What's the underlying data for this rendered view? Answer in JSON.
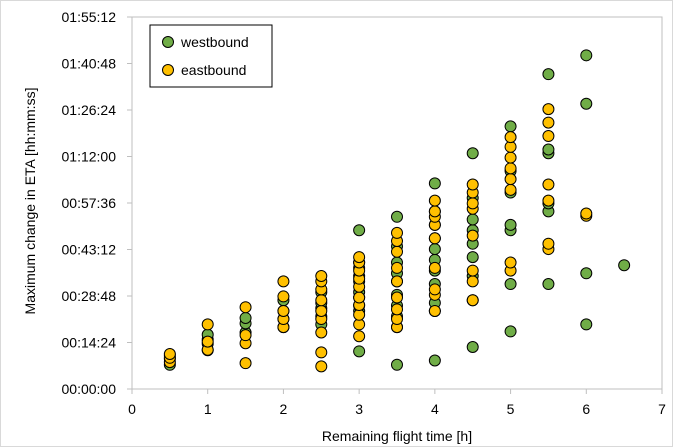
{
  "chart_data": {
    "type": "scatter",
    "xlabel": "Remaining flight time [h]",
    "ylabel": "Maximum change in ETA [hh:mm:ss]",
    "xlim": [
      0,
      7
    ],
    "ylim": [
      0,
      6912
    ],
    "x_ticks": [
      "0",
      "1",
      "2",
      "3",
      "4",
      "5",
      "6",
      "7"
    ],
    "y_tick_values": [
      0,
      864,
      1728,
      2592,
      3456,
      4320,
      5184,
      6048,
      6912
    ],
    "y_ticks": [
      "00:00:00",
      "00:14:24",
      "00:28:48",
      "00:43:12",
      "00:57:36",
      "01:12:00",
      "01:26:24",
      "01:40:48",
      "01:55:12"
    ],
    "grid": false,
    "legend_position": "top-left",
    "series": [
      {
        "name": "westbound",
        "color": "#70AD47",
        "points": [
          [
            0.5,
            450
          ],
          [
            0.5,
            560
          ],
          [
            0.5,
            620
          ],
          [
            1,
            720
          ],
          [
            1,
            840
          ],
          [
            1,
            920
          ],
          [
            1,
            1010
          ],
          [
            1.5,
            1050
          ],
          [
            1.5,
            1220
          ],
          [
            1.5,
            1320
          ],
          [
            2,
            1150
          ],
          [
            2,
            1300
          ],
          [
            2,
            1450
          ],
          [
            2,
            1650
          ],
          [
            2.5,
            1200
          ],
          [
            2.5,
            1350
          ],
          [
            2.5,
            1500
          ],
          [
            2.5,
            1600
          ],
          [
            2.5,
            1800
          ],
          [
            3,
            700
          ],
          [
            3,
            1450
          ],
          [
            3,
            1550
          ],
          [
            3,
            1700
          ],
          [
            3,
            1800
          ],
          [
            3,
            2000
          ],
          [
            3,
            2100
          ],
          [
            3,
            2250
          ],
          [
            3,
            2350
          ],
          [
            3,
            2950
          ],
          [
            3.5,
            450
          ],
          [
            3.5,
            1150
          ],
          [
            3.5,
            1350
          ],
          [
            3.5,
            1550
          ],
          [
            3.5,
            1750
          ],
          [
            3.5,
            2000
          ],
          [
            3.5,
            2150
          ],
          [
            3.5,
            2350
          ],
          [
            3.5,
            2650
          ],
          [
            3.5,
            3200
          ],
          [
            4,
            530
          ],
          [
            4,
            1450
          ],
          [
            4,
            1600
          ],
          [
            4,
            1950
          ],
          [
            4,
            2200
          ],
          [
            4,
            2400
          ],
          [
            4,
            2600
          ],
          [
            4,
            2800
          ],
          [
            4,
            3050
          ],
          [
            4,
            3300
          ],
          [
            4,
            3820
          ],
          [
            4.5,
            780
          ],
          [
            4.5,
            1650
          ],
          [
            4.5,
            2100
          ],
          [
            4.5,
            2450
          ],
          [
            4.5,
            2700
          ],
          [
            4.5,
            2950
          ],
          [
            4.5,
            3150
          ],
          [
            4.5,
            3550
          ],
          [
            4.5,
            4380
          ],
          [
            5,
            1070
          ],
          [
            5,
            1950
          ],
          [
            5,
            2950
          ],
          [
            5,
            3050
          ],
          [
            5,
            3650
          ],
          [
            5,
            4050
          ],
          [
            5,
            4880
          ],
          [
            5.5,
            1950
          ],
          [
            5.5,
            3300
          ],
          [
            5.5,
            3450
          ],
          [
            5.5,
            4380
          ],
          [
            5.5,
            4450
          ],
          [
            5.5,
            5850
          ],
          [
            6,
            1200
          ],
          [
            6,
            2150
          ],
          [
            6,
            5300
          ],
          [
            6,
            6200
          ],
          [
            6.5,
            2300
          ]
        ]
      },
      {
        "name": "eastbound",
        "color": "#FFC000",
        "points": [
          [
            0.5,
            500
          ],
          [
            0.5,
            580
          ],
          [
            0.5,
            650
          ],
          [
            1,
            730
          ],
          [
            1,
            880
          ],
          [
            1,
            1200
          ],
          [
            1.5,
            480
          ],
          [
            1.5,
            850
          ],
          [
            1.5,
            1000
          ],
          [
            1.5,
            1520
          ],
          [
            2,
            1150
          ],
          [
            2,
            1300
          ],
          [
            2,
            1450
          ],
          [
            2,
            1720
          ],
          [
            2,
            2000
          ],
          [
            2.5,
            420
          ],
          [
            2.5,
            680
          ],
          [
            2.5,
            1050
          ],
          [
            2.5,
            1300
          ],
          [
            2.5,
            1450
          ],
          [
            2.5,
            1650
          ],
          [
            2.5,
            1850
          ],
          [
            2.5,
            2000
          ],
          [
            2.5,
            2100
          ],
          [
            3,
            980
          ],
          [
            3,
            1200
          ],
          [
            3,
            1380
          ],
          [
            3,
            1560
          ],
          [
            3,
            1700
          ],
          [
            3,
            1900
          ],
          [
            3,
            2050
          ],
          [
            3,
            2200
          ],
          [
            3,
            2350
          ],
          [
            3,
            2450
          ],
          [
            3.5,
            1150
          ],
          [
            3.5,
            1300
          ],
          [
            3.5,
            1480
          ],
          [
            3.5,
            1700
          ],
          [
            3.5,
            2000
          ],
          [
            3.5,
            2250
          ],
          [
            3.5,
            2550
          ],
          [
            3.5,
            2750
          ],
          [
            3.5,
            2900
          ],
          [
            4,
            1450
          ],
          [
            4,
            1750
          ],
          [
            4,
            1850
          ],
          [
            4,
            2250
          ],
          [
            4,
            2800
          ],
          [
            4,
            3050
          ],
          [
            4,
            3200
          ],
          [
            4,
            3300
          ],
          [
            4,
            3500
          ],
          [
            4.5,
            1650
          ],
          [
            4.5,
            2000
          ],
          [
            4.5,
            2200
          ],
          [
            4.5,
            2850
          ],
          [
            4.5,
            3350
          ],
          [
            4.5,
            3450
          ],
          [
            4.5,
            3650
          ],
          [
            4.5,
            3800
          ],
          [
            5,
            2200
          ],
          [
            5,
            2350
          ],
          [
            5,
            3700
          ],
          [
            5,
            3900
          ],
          [
            5,
            4100
          ],
          [
            5,
            4300
          ],
          [
            5,
            4500
          ],
          [
            5,
            4680
          ],
          [
            5.5,
            2600
          ],
          [
            5.5,
            2700
          ],
          [
            5.5,
            3500
          ],
          [
            5.5,
            3800
          ],
          [
            5.5,
            4700
          ],
          [
            5.5,
            4950
          ],
          [
            5.5,
            5200
          ],
          [
            6,
            3220
          ],
          [
            6,
            3260
          ]
        ]
      }
    ]
  }
}
